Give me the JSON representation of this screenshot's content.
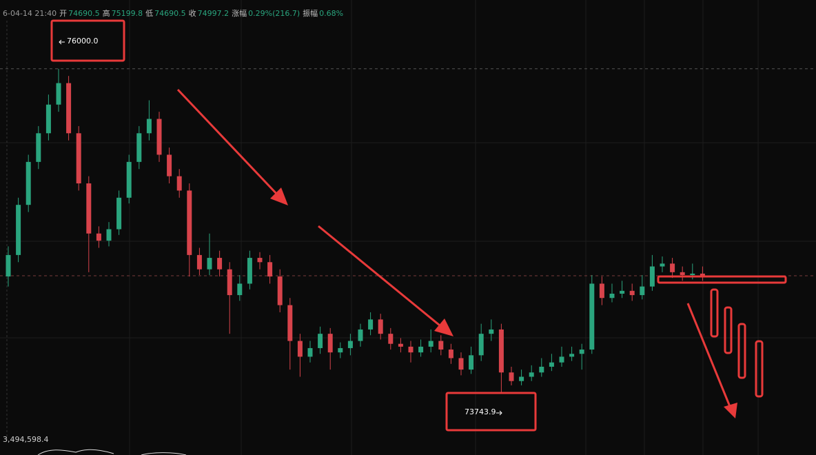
{
  "header": {
    "time": "6-04-14 21:40",
    "fields": [
      {
        "label": "开",
        "value": "74690.5"
      },
      {
        "label": "高",
        "value": "75199.8"
      },
      {
        "label": "低",
        "value": "74690.5"
      },
      {
        "label": "收",
        "value": "74997.2"
      },
      {
        "label": "涨幅",
        "value": "0.29%(216.7)"
      },
      {
        "label": "振幅",
        "value": "0.68%"
      }
    ]
  },
  "chart_data": {
    "type": "candlestick",
    "up_color": "#2aa57e",
    "down_color": "#d8434b",
    "ylim": [
      73400,
      76360
    ],
    "high_label": "76000.0",
    "low_label": "73743.9",
    "volume_label": "3,494,598.4",
    "candles": [
      [
        74550,
        74760,
        74480,
        74700
      ],
      [
        74700,
        75100,
        74650,
        75050
      ],
      [
        75050,
        75400,
        75000,
        75350
      ],
      [
        75350,
        75600,
        75300,
        75550
      ],
      [
        75550,
        75820,
        75500,
        75750
      ],
      [
        75750,
        76000,
        75700,
        75900
      ],
      [
        75900,
        75950,
        75500,
        75550
      ],
      [
        75550,
        75600,
        75150,
        75200
      ],
      [
        75200,
        75250,
        74580,
        74850
      ],
      [
        74850,
        74900,
        74750,
        74800
      ],
      [
        74800,
        74930,
        74760,
        74880
      ],
      [
        74880,
        75150,
        74840,
        75100
      ],
      [
        75100,
        75400,
        75060,
        75350
      ],
      [
        75350,
        75600,
        75300,
        75550
      ],
      [
        75550,
        75780,
        75500,
        75650
      ],
      [
        75650,
        75700,
        75350,
        75400
      ],
      [
        75400,
        75450,
        75200,
        75250
      ],
      [
        75250,
        75300,
        75100,
        75150
      ],
      [
        75150,
        75200,
        74550,
        74700
      ],
      [
        74700,
        74750,
        74560,
        74600
      ],
      [
        74600,
        74850,
        74560,
        74680
      ],
      [
        74680,
        74730,
        74550,
        74600
      ],
      [
        74600,
        74650,
        74150,
        74420
      ],
      [
        74420,
        74560,
        74380,
        74500
      ],
      [
        74500,
        74730,
        74460,
        74680
      ],
      [
        74680,
        74720,
        74600,
        74650
      ],
      [
        74650,
        74700,
        74500,
        74550
      ],
      [
        74550,
        74600,
        74300,
        74350
      ],
      [
        74350,
        74400,
        73900,
        74100
      ],
      [
        74100,
        74150,
        73850,
        73990
      ],
      [
        73990,
        74100,
        73950,
        74050
      ],
      [
        74050,
        74200,
        74010,
        74150
      ],
      [
        74150,
        74190,
        73900,
        74020
      ],
      [
        74020,
        74090,
        73980,
        74050
      ],
      [
        74050,
        74150,
        74000,
        74100
      ],
      [
        74100,
        74220,
        74060,
        74180
      ],
      [
        74180,
        74300,
        74140,
        74250
      ],
      [
        74250,
        74290,
        74110,
        74150
      ],
      [
        74150,
        74190,
        74040,
        74080
      ],
      [
        74080,
        74120,
        74020,
        74060
      ],
      [
        74060,
        74100,
        73950,
        74020
      ],
      [
        74020,
        74110,
        73990,
        74060
      ],
      [
        74060,
        74180,
        74020,
        74100
      ],
      [
        74100,
        74140,
        74000,
        74040
      ],
      [
        74040,
        74080,
        73940,
        73980
      ],
      [
        73980,
        74020,
        73860,
        73900
      ],
      [
        73900,
        74060,
        73870,
        74000
      ],
      [
        74000,
        74220,
        73960,
        74150
      ],
      [
        74150,
        74250,
        74100,
        74180
      ],
      [
        74180,
        74220,
        73743.9,
        73880
      ],
      [
        73880,
        73920,
        73790,
        73820
      ],
      [
        73820,
        73900,
        73790,
        73850
      ],
      [
        73850,
        73930,
        73820,
        73880
      ],
      [
        73880,
        73980,
        73850,
        73920
      ],
      [
        73920,
        74010,
        73890,
        73950
      ],
      [
        73950,
        74060,
        73920,
        73990
      ],
      [
        73990,
        74060,
        73960,
        74010
      ],
      [
        74010,
        74080,
        73900,
        74040
      ],
      [
        74040,
        74560,
        74010,
        74500
      ],
      [
        74500,
        74550,
        74350,
        74400
      ],
      [
        74400,
        74500,
        74370,
        74430
      ],
      [
        74430,
        74520,
        74400,
        74450
      ],
      [
        74450,
        74500,
        74380,
        74420
      ],
      [
        74420,
        74560,
        74390,
        74480
      ],
      [
        74480,
        74700,
        74450,
        74620
      ],
      [
        74620,
        74690,
        74580,
        74640
      ],
      [
        74640,
        74680,
        74540,
        74580
      ],
      [
        74580,
        74620,
        74520,
        74560
      ],
      [
        74560,
        74640,
        74530,
        74570
      ],
      [
        74570,
        74620,
        74520,
        74555
      ]
    ]
  }
}
